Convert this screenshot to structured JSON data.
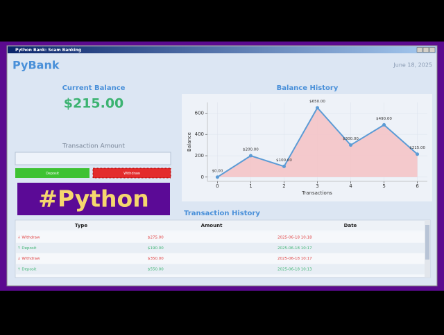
{
  "window": {
    "title": "Python Bank: Scam Banking"
  },
  "header": {
    "app_name": "PyBank",
    "date": "June 18, 2025"
  },
  "balance": {
    "label": "Current Balance",
    "amount": "$215.00"
  },
  "form": {
    "label": "Transaction Amount",
    "deposit_button": "Deposit",
    "withdraw_button": "Withdraw"
  },
  "banner": {
    "text": "#Python"
  },
  "chart_data": {
    "type": "line",
    "title": "Balance History",
    "x_label": "Transactions",
    "y_label": "Balance",
    "x": [
      0,
      1,
      2,
      3,
      4,
      5,
      6
    ],
    "values": [
      0,
      200,
      100,
      650,
      300,
      490,
      215
    ],
    "value_labels": [
      "$0.00",
      "$200.00",
      "$100.00",
      "$650.00",
      "$300.00",
      "$490.00",
      "$215.00"
    ],
    "color": "#5b9bd5",
    "fill_color": "#f4c4c6",
    "xlim": [
      -0.3,
      6.3
    ],
    "xticks": [
      0,
      1,
      2,
      3,
      4,
      5,
      6
    ],
    "ylim": [
      -40,
      700
    ],
    "yticks": [
      0,
      200,
      400,
      600
    ],
    "grid": true
  },
  "table": {
    "title": "Transaction History",
    "columns": [
      "Type",
      "Amount",
      "Date"
    ],
    "rows": [
      [
        "↓ Withdraw",
        "$275.00",
        "2025-06-18 10:18"
      ],
      [
        "↑ Deposit",
        "$190.00",
        "2025-06-18 10:17"
      ],
      [
        "↓ Withdraw",
        "$350.00",
        "2025-06-18 10:17"
      ],
      [
        "↑ Deposit",
        "$550.00",
        "2025-06-18 10:13"
      ]
    ]
  }
}
